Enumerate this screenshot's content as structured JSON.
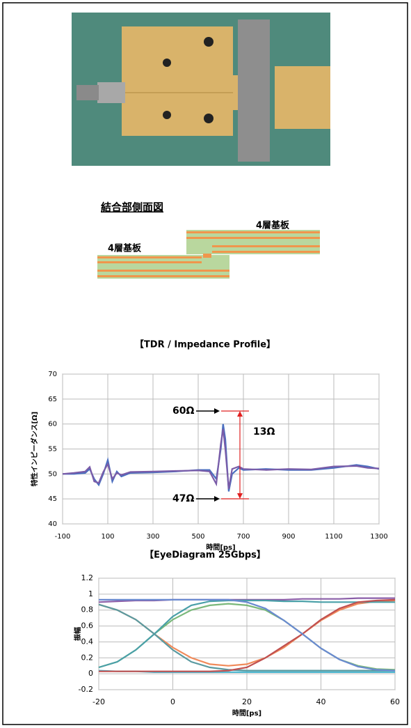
{
  "diagram": {
    "title": "結合部側面図",
    "labels": [
      "4層基板",
      "4層基板"
    ]
  },
  "chart_data": [
    {
      "type": "line",
      "title": "【TDR / Impedance Profile】",
      "x_label": "時間[ps]",
      "y_label": "特性インピーダンス[Ω]",
      "annotations": [
        "60Ω",
        "47Ω",
        "13Ω"
      ],
      "x": [
        -100,
        -50,
        0,
        20,
        40,
        60,
        80,
        100,
        120,
        140,
        160,
        200,
        300,
        400,
        500,
        550,
        580,
        600,
        610,
        620,
        635,
        650,
        680,
        700,
        800,
        900,
        1000,
        1100,
        1200,
        1250,
        1300
      ],
      "series": [
        {
          "color": "#4a6fc0",
          "values": [
            50,
            50,
            50.2,
            51,
            49,
            47.8,
            50,
            52.8,
            48.5,
            50.5,
            49.5,
            50.2,
            50.3,
            50.5,
            50.8,
            50.8,
            49,
            55,
            60,
            57,
            46.5,
            50,
            51.2,
            50.8,
            51,
            50.8,
            50.8,
            51.2,
            51.8,
            51.5,
            51
          ]
        },
        {
          "color": "#7a5ca8",
          "values": [
            50,
            50.2,
            50.5,
            51.4,
            48.5,
            48.2,
            50.4,
            52,
            49,
            50.2,
            49.8,
            50.4,
            50.5,
            50.6,
            50.7,
            50.5,
            48,
            56,
            59,
            55,
            47,
            51,
            51.5,
            51,
            50.8,
            51,
            50.9,
            51.5,
            51.6,
            51.2,
            51.1
          ]
        }
      ],
      "xlim": [
        -100,
        1300
      ],
      "xticks": [
        -100,
        100,
        300,
        500,
        700,
        900,
        1100,
        1300
      ],
      "ylim": [
        40,
        70
      ],
      "yticks": [
        40,
        45,
        50,
        55,
        60,
        65,
        70
      ],
      "grid": true
    },
    {
      "type": "line",
      "title": "【EyeDiagram 25Gbps】",
      "x_label": "時間[ps]",
      "y_label": "振幅",
      "x": [
        -20,
        -15,
        -10,
        -5,
        0,
        5,
        10,
        15,
        20,
        25,
        30,
        35,
        40,
        45,
        50,
        55,
        60
      ],
      "series": [
        {
          "color": "#8a5ea8",
          "values": [
            0.9,
            0.91,
            0.92,
            0.92,
            0.93,
            0.93,
            0.93,
            0.93,
            0.93,
            0.93,
            0.93,
            0.94,
            0.94,
            0.94,
            0.95,
            0.95,
            0.95
          ]
        },
        {
          "color": "#4fb8d0",
          "values": [
            0.04,
            0.03,
            0.03,
            0.02,
            0.02,
            0.02,
            0.02,
            0.02,
            0.02,
            0.02,
            0.02,
            0.02,
            0.02,
            0.02,
            0.02,
            0.02,
            0.02
          ]
        },
        {
          "color": "#f08a5a",
          "values": [
            0.87,
            0.8,
            0.68,
            0.5,
            0.33,
            0.2,
            0.12,
            0.1,
            0.12,
            0.2,
            0.33,
            0.5,
            0.67,
            0.8,
            0.88,
            0.91,
            0.92
          ]
        },
        {
          "color": "#7ab87a",
          "values": [
            0.08,
            0.15,
            0.3,
            0.5,
            0.68,
            0.8,
            0.86,
            0.88,
            0.86,
            0.8,
            0.67,
            0.5,
            0.32,
            0.18,
            0.1,
            0.06,
            0.05
          ]
        },
        {
          "color": "#4aa0a8",
          "values": [
            0.08,
            0.15,
            0.3,
            0.5,
            0.72,
            0.86,
            0.91,
            0.92,
            0.92,
            0.92,
            0.91,
            0.91,
            0.9,
            0.9,
            0.9,
            0.9,
            0.9
          ]
        },
        {
          "color": "#5a9aa0",
          "values": [
            0.87,
            0.8,
            0.68,
            0.5,
            0.3,
            0.15,
            0.08,
            0.05,
            0.04,
            0.04,
            0.04,
            0.04,
            0.04,
            0.04,
            0.04,
            0.04,
            0.04
          ]
        },
        {
          "color": "#c05050",
          "values": [
            0.03,
            0.03,
            0.03,
            0.03,
            0.03,
            0.03,
            0.03,
            0.04,
            0.08,
            0.2,
            0.35,
            0.5,
            0.68,
            0.82,
            0.9,
            0.92,
            0.93
          ]
        },
        {
          "color": "#6a8ad0",
          "values": [
            0.93,
            0.93,
            0.93,
            0.93,
            0.93,
            0.93,
            0.93,
            0.93,
            0.9,
            0.82,
            0.67,
            0.5,
            0.32,
            0.18,
            0.09,
            0.05,
            0.04
          ]
        }
      ],
      "xlim": [
        -20,
        60
      ],
      "xticks": [
        -20,
        0,
        20,
        40,
        60
      ],
      "ylim": [
        -0.2,
        1.2
      ],
      "yticks": [
        -0.2,
        0,
        0.2,
        0.4,
        0.6,
        0.8,
        1,
        1.2
      ],
      "grid": true
    }
  ]
}
